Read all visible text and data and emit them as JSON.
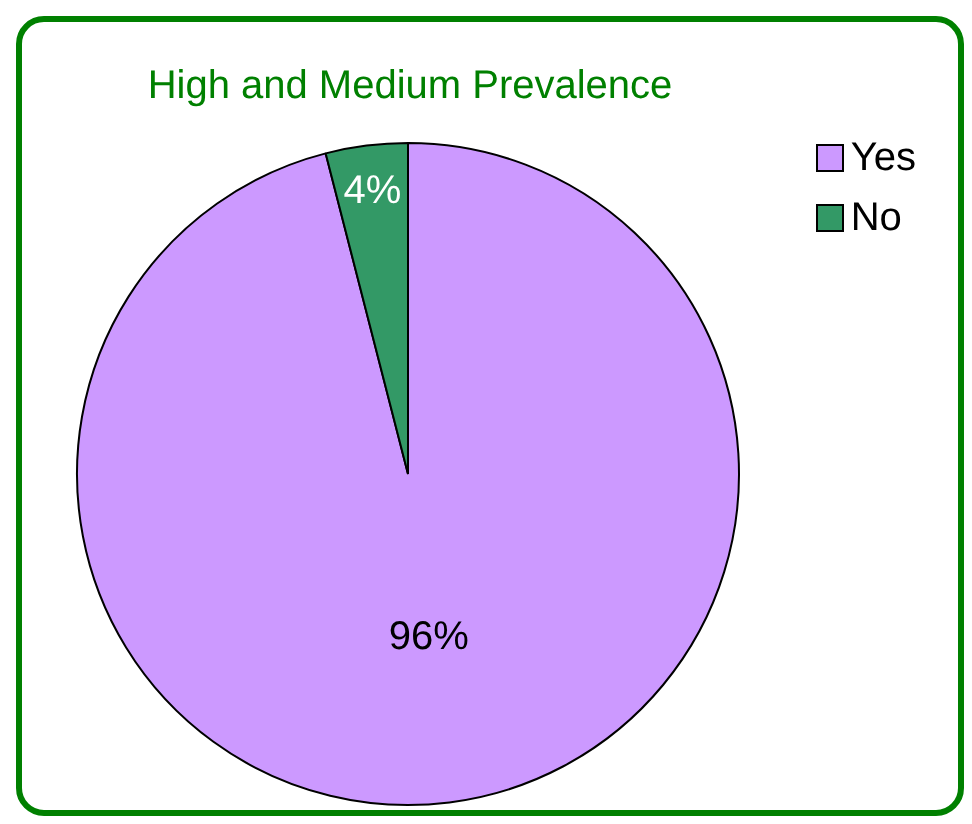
{
  "chart_data": {
    "type": "pie",
    "title": "High and Medium Prevalence",
    "categories": [
      "Yes",
      "No"
    ],
    "values": [
      96,
      4
    ],
    "colors": [
      "#cc99ff",
      "#339966"
    ],
    "value_labels": [
      "96%",
      "4%"
    ],
    "legend": "top right"
  }
}
